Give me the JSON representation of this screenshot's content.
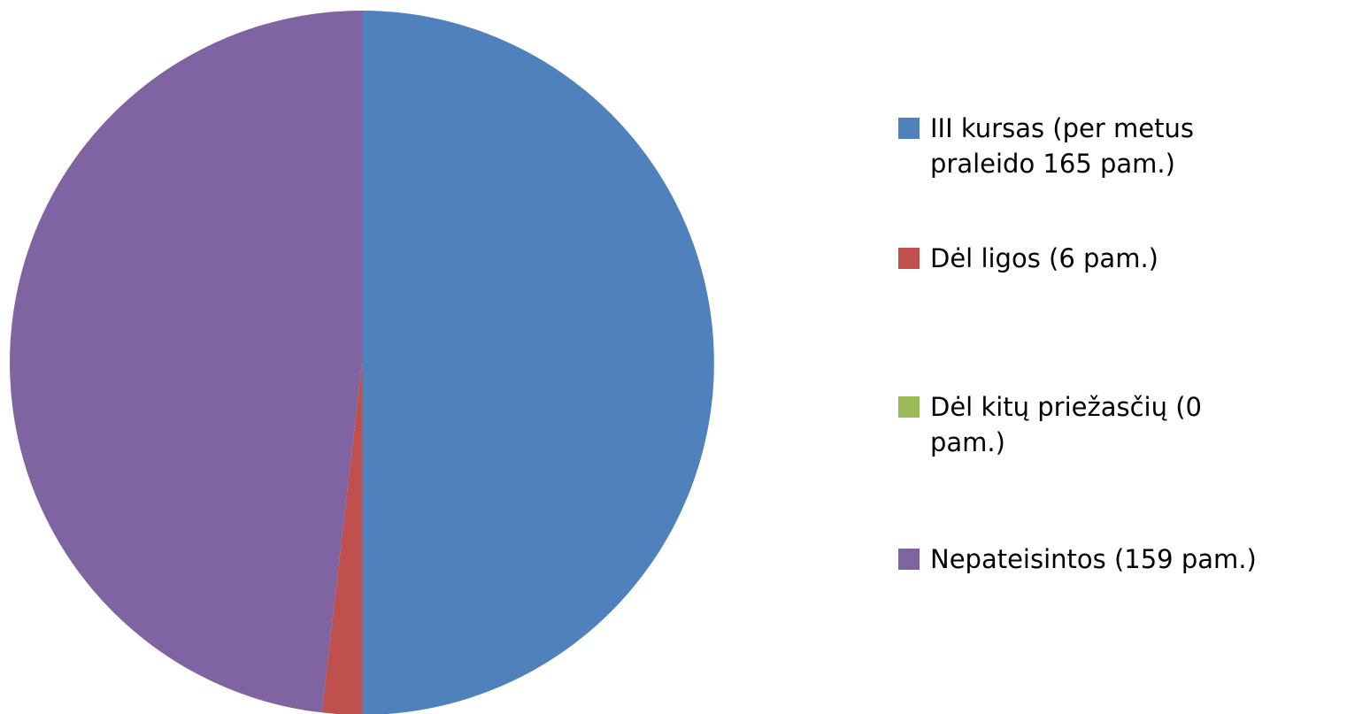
{
  "chart_data": {
    "type": "pie",
    "categories": [
      "III kursas (per metus praleido 165 pam.)",
      "Dėl ligos (6 pam.)",
      "Dėl kitų priežasčių (0 pam.)",
      "Nepateisintos (159 pam.)"
    ],
    "values": [
      165,
      6,
      0,
      159
    ],
    "colors": [
      "#4f81bd",
      "#c0504d",
      "#9bbb59",
      "#8064a2"
    ],
    "legend": "right"
  }
}
